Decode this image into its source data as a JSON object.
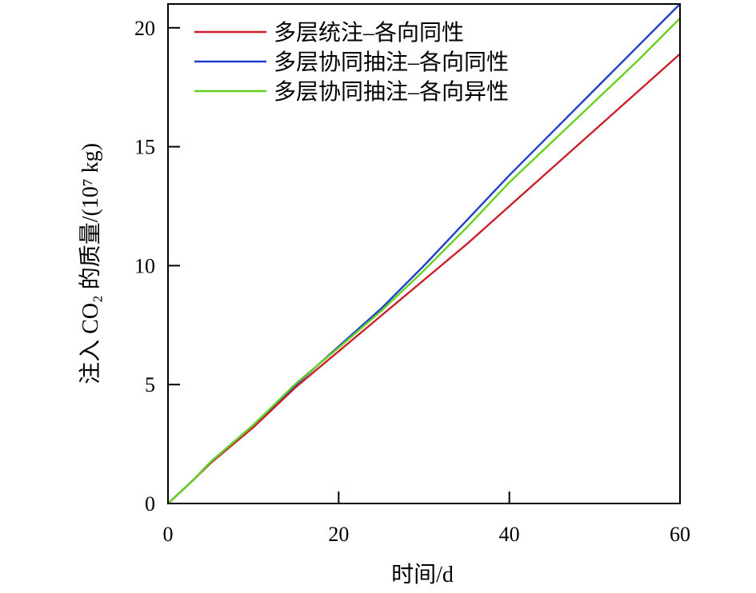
{
  "chart_data": {
    "type": "line",
    "xlabel": "时间/d",
    "ylabel": "注入 CO₂ 的质量/(10⁷ kg)",
    "xlim": [
      0,
      60
    ],
    "ylim": [
      0,
      21
    ],
    "xticks": [
      0,
      20,
      40,
      60
    ],
    "yticks": [
      0,
      5,
      10,
      15,
      20
    ],
    "grid": false,
    "legend_position": "top-left",
    "series": [
      {
        "name": "多层统注–各向同性",
        "color": "#cc1f2b",
        "x": [
          0,
          3,
          5,
          10,
          15,
          20,
          25,
          30,
          35,
          40,
          45,
          50,
          55,
          60
        ],
        "y": [
          0,
          1.0,
          1.7,
          3.2,
          4.9,
          6.4,
          7.9,
          9.4,
          10.9,
          12.5,
          14.1,
          15.7,
          17.3,
          18.9
        ]
      },
      {
        "name": "多层协同抽注–各向同性",
        "color": "#1f3fcc",
        "x": [
          0,
          3,
          5,
          10,
          15,
          20,
          25,
          30,
          35,
          40,
          45,
          50,
          55,
          60
        ],
        "y": [
          0,
          1.0,
          1.75,
          3.3,
          5.0,
          6.6,
          8.2,
          10.0,
          11.9,
          13.8,
          15.6,
          17.4,
          19.2,
          21.0
        ]
      },
      {
        "name": "多层协同抽注–各向异性",
        "color": "#66d11f",
        "x": [
          0,
          3,
          5,
          10,
          15,
          20,
          25,
          30,
          35,
          40,
          45,
          50,
          55,
          60
        ],
        "y": [
          0,
          1.0,
          1.75,
          3.3,
          5.05,
          6.55,
          8.1,
          9.8,
          11.6,
          13.5,
          15.2,
          16.9,
          18.6,
          20.4
        ]
      }
    ]
  }
}
